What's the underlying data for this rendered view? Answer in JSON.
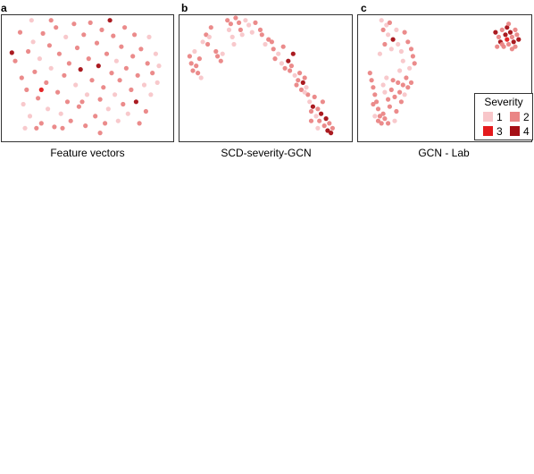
{
  "colors": {
    "1": "#f8c6c9",
    "2": "#ea8585",
    "3": "#e41a1c",
    "4": "#a50f15"
  },
  "legend": {
    "title": "Severity",
    "items": [
      {
        "label": "1",
        "level": 1
      },
      {
        "label": "2",
        "level": 2
      },
      {
        "label": "3",
        "level": 3
      },
      {
        "label": "4",
        "level": 4
      }
    ]
  },
  "chart_data": [
    {
      "type": "scatter",
      "letter": "a",
      "xlabel": "Feature vectors",
      "xlim": [
        0,
        100
      ],
      "ylim": [
        0,
        100
      ],
      "points": [
        {
          "x": 4,
          "y": 71,
          "s": 4
        },
        {
          "x": 6,
          "y": 64,
          "s": 2
        },
        {
          "x": 9,
          "y": 88,
          "s": 2
        },
        {
          "x": 10,
          "y": 50,
          "s": 2
        },
        {
          "x": 11,
          "y": 28,
          "s": 1
        },
        {
          "x": 12,
          "y": 8,
          "s": 1
        },
        {
          "x": 13,
          "y": 40,
          "s": 2
        },
        {
          "x": 14,
          "y": 72,
          "s": 2
        },
        {
          "x": 15,
          "y": 18,
          "s": 1
        },
        {
          "x": 16,
          "y": 98,
          "s": 1
        },
        {
          "x": 17,
          "y": 80,
          "s": 1
        },
        {
          "x": 18,
          "y": 55,
          "s": 2
        },
        {
          "x": 20,
          "y": 33,
          "s": 2
        },
        {
          "x": 21,
          "y": 66,
          "s": 1
        },
        {
          "x": 22,
          "y": 12,
          "s": 2
        },
        {
          "x": 23,
          "y": 87,
          "s": 2
        },
        {
          "x": 25,
          "y": 46,
          "s": 2
        },
        {
          "x": 26,
          "y": 24,
          "s": 1
        },
        {
          "x": 27,
          "y": 77,
          "s": 2
        },
        {
          "x": 28,
          "y": 58,
          "s": 1
        },
        {
          "x": 30,
          "y": 9,
          "s": 2
        },
        {
          "x": 31,
          "y": 92,
          "s": 2
        },
        {
          "x": 32,
          "y": 38,
          "s": 2
        },
        {
          "x": 33,
          "y": 70,
          "s": 2
        },
        {
          "x": 34,
          "y": 20,
          "s": 1
        },
        {
          "x": 36,
          "y": 52,
          "s": 2
        },
        {
          "x": 37,
          "y": 84,
          "s": 1
        },
        {
          "x": 38,
          "y": 30,
          "s": 2
        },
        {
          "x": 39,
          "y": 62,
          "s": 2
        },
        {
          "x": 40,
          "y": 14,
          "s": 2
        },
        {
          "x": 42,
          "y": 95,
          "s": 2
        },
        {
          "x": 43,
          "y": 44,
          "s": 1
        },
        {
          "x": 44,
          "y": 75,
          "s": 2
        },
        {
          "x": 45,
          "y": 26,
          "s": 2
        },
        {
          "x": 46,
          "y": 57,
          "s": 4
        },
        {
          "x": 48,
          "y": 86,
          "s": 2
        },
        {
          "x": 49,
          "y": 10,
          "s": 2
        },
        {
          "x": 50,
          "y": 36,
          "s": 1
        },
        {
          "x": 51,
          "y": 66,
          "s": 2
        },
        {
          "x": 52,
          "y": 96,
          "s": 2
        },
        {
          "x": 53,
          "y": 48,
          "s": 2
        },
        {
          "x": 55,
          "y": 18,
          "s": 2
        },
        {
          "x": 56,
          "y": 79,
          "s": 2
        },
        {
          "x": 57,
          "y": 60,
          "s": 4
        },
        {
          "x": 58,
          "y": 32,
          "s": 2
        },
        {
          "x": 59,
          "y": 90,
          "s": 2
        },
        {
          "x": 60,
          "y": 42,
          "s": 2
        },
        {
          "x": 61,
          "y": 12,
          "s": 2
        },
        {
          "x": 62,
          "y": 70,
          "s": 2
        },
        {
          "x": 63,
          "y": 24,
          "s": 1
        },
        {
          "x": 64,
          "y": 98,
          "s": 4
        },
        {
          "x": 65,
          "y": 54,
          "s": 2
        },
        {
          "x": 66,
          "y": 85,
          "s": 2
        },
        {
          "x": 67,
          "y": 36,
          "s": 1
        },
        {
          "x": 68,
          "y": 64,
          "s": 1
        },
        {
          "x": 69,
          "y": 14,
          "s": 1
        },
        {
          "x": 70,
          "y": 48,
          "s": 2
        },
        {
          "x": 71,
          "y": 76,
          "s": 2
        },
        {
          "x": 72,
          "y": 28,
          "s": 2
        },
        {
          "x": 73,
          "y": 92,
          "s": 2
        },
        {
          "x": 74,
          "y": 58,
          "s": 2
        },
        {
          "x": 75,
          "y": 20,
          "s": 1
        },
        {
          "x": 77,
          "y": 40,
          "s": 2
        },
        {
          "x": 78,
          "y": 68,
          "s": 2
        },
        {
          "x": 79,
          "y": 86,
          "s": 2
        },
        {
          "x": 80,
          "y": 30,
          "s": 4
        },
        {
          "x": 81,
          "y": 52,
          "s": 2
        },
        {
          "x": 82,
          "y": 12,
          "s": 2
        },
        {
          "x": 83,
          "y": 74,
          "s": 2
        },
        {
          "x": 85,
          "y": 44,
          "s": 1
        },
        {
          "x": 86,
          "y": 22,
          "s": 2
        },
        {
          "x": 87,
          "y": 62,
          "s": 2
        },
        {
          "x": 88,
          "y": 84,
          "s": 1
        },
        {
          "x": 89,
          "y": 36,
          "s": 1
        },
        {
          "x": 90,
          "y": 54,
          "s": 2
        },
        {
          "x": 92,
          "y": 70,
          "s": 1
        },
        {
          "x": 93,
          "y": 46,
          "s": 1
        },
        {
          "x": 94,
          "y": 60,
          "s": 1
        },
        {
          "x": 22,
          "y": 40,
          "s": 3
        },
        {
          "x": 47,
          "y": 30,
          "s": 2
        },
        {
          "x": 35,
          "y": 8,
          "s": 2
        },
        {
          "x": 58,
          "y": 4,
          "s": 2
        },
        {
          "x": 19,
          "y": 8,
          "s": 2
        },
        {
          "x": 28,
          "y": 98,
          "s": 2
        }
      ]
    },
    {
      "type": "scatter",
      "letter": "b",
      "xlabel": "SCD-severity-GCN",
      "xlim": [
        0,
        100
      ],
      "ylim": [
        0,
        100
      ],
      "points": [
        {
          "x": 4,
          "y": 68,
          "s": 2
        },
        {
          "x": 5,
          "y": 62,
          "s": 2
        },
        {
          "x": 6,
          "y": 56,
          "s": 2
        },
        {
          "x": 7,
          "y": 72,
          "s": 1
        },
        {
          "x": 8,
          "y": 60,
          "s": 2
        },
        {
          "x": 9,
          "y": 54,
          "s": 2
        },
        {
          "x": 10,
          "y": 66,
          "s": 2
        },
        {
          "x": 11,
          "y": 50,
          "s": 1
        },
        {
          "x": 12,
          "y": 80,
          "s": 1
        },
        {
          "x": 14,
          "y": 86,
          "s": 2
        },
        {
          "x": 15,
          "y": 78,
          "s": 2
        },
        {
          "x": 16,
          "y": 84,
          "s": 1
        },
        {
          "x": 17,
          "y": 92,
          "s": 2
        },
        {
          "x": 20,
          "y": 72,
          "s": 2
        },
        {
          "x": 21,
          "y": 68,
          "s": 2
        },
        {
          "x": 24,
          "y": 70,
          "s": 1
        },
        {
          "x": 27,
          "y": 98,
          "s": 2
        },
        {
          "x": 28,
          "y": 90,
          "s": 1
        },
        {
          "x": 29,
          "y": 95,
          "s": 2
        },
        {
          "x": 30,
          "y": 84,
          "s": 1
        },
        {
          "x": 31,
          "y": 78,
          "s": 1
        },
        {
          "x": 32,
          "y": 100,
          "s": 2
        },
        {
          "x": 34,
          "y": 96,
          "s": 2
        },
        {
          "x": 35,
          "y": 90,
          "s": 2
        },
        {
          "x": 38,
          "y": 98,
          "s": 1
        },
        {
          "x": 40,
          "y": 94,
          "s": 1
        },
        {
          "x": 44,
          "y": 96,
          "s": 2
        },
        {
          "x": 47,
          "y": 90,
          "s": 2
        },
        {
          "x": 48,
          "y": 86,
          "s": 2
        },
        {
          "x": 50,
          "y": 78,
          "s": 1
        },
        {
          "x": 52,
          "y": 82,
          "s": 2
        },
        {
          "x": 55,
          "y": 74,
          "s": 2
        },
        {
          "x": 56,
          "y": 66,
          "s": 2
        },
        {
          "x": 58,
          "y": 70,
          "s": 1
        },
        {
          "x": 60,
          "y": 62,
          "s": 1
        },
        {
          "x": 62,
          "y": 58,
          "s": 2
        },
        {
          "x": 64,
          "y": 64,
          "s": 4
        },
        {
          "x": 65,
          "y": 56,
          "s": 2
        },
        {
          "x": 66,
          "y": 60,
          "s": 2
        },
        {
          "x": 68,
          "y": 52,
          "s": 1
        },
        {
          "x": 69,
          "y": 44,
          "s": 2
        },
        {
          "x": 70,
          "y": 48,
          "s": 2
        },
        {
          "x": 71,
          "y": 54,
          "s": 2
        },
        {
          "x": 72,
          "y": 40,
          "s": 2
        },
        {
          "x": 73,
          "y": 46,
          "s": 4
        },
        {
          "x": 74,
          "y": 50,
          "s": 2
        },
        {
          "x": 75,
          "y": 42,
          "s": 1
        },
        {
          "x": 76,
          "y": 36,
          "s": 2
        },
        {
          "x": 77,
          "y": 30,
          "s": 1
        },
        {
          "x": 78,
          "y": 22,
          "s": 2
        },
        {
          "x": 79,
          "y": 26,
          "s": 4
        },
        {
          "x": 80,
          "y": 34,
          "s": 2
        },
        {
          "x": 81,
          "y": 18,
          "s": 1
        },
        {
          "x": 82,
          "y": 24,
          "s": 2
        },
        {
          "x": 83,
          "y": 14,
          "s": 2
        },
        {
          "x": 84,
          "y": 20,
          "s": 4
        },
        {
          "x": 85,
          "y": 30,
          "s": 2
        },
        {
          "x": 86,
          "y": 10,
          "s": 2
        },
        {
          "x": 87,
          "y": 16,
          "s": 4
        },
        {
          "x": 88,
          "y": 6,
          "s": 4
        },
        {
          "x": 89,
          "y": 12,
          "s": 2
        },
        {
          "x": 90,
          "y": 4,
          "s": 4
        },
        {
          "x": 91,
          "y": 8,
          "s": 2
        },
        {
          "x": 67,
          "y": 70,
          "s": 4
        },
        {
          "x": 61,
          "y": 76,
          "s": 2
        },
        {
          "x": 74,
          "y": 38,
          "s": 1
        },
        {
          "x": 82,
          "y": 8,
          "s": 1
        },
        {
          "x": 78,
          "y": 14,
          "s": 2
        },
        {
          "x": 42,
          "y": 88,
          "s": 1
        },
        {
          "x": 54,
          "y": 80,
          "s": 2
        },
        {
          "x": 36,
          "y": 86,
          "s": 1
        },
        {
          "x": 23,
          "y": 64,
          "s": 2
        }
      ]
    },
    {
      "type": "scatter",
      "letter": "c",
      "xlabel": "GCN - Lab",
      "xlim": [
        0,
        100
      ],
      "ylim": [
        0,
        100
      ],
      "points": [
        {
          "x": 12,
          "y": 98,
          "s": 1
        },
        {
          "x": 15,
          "y": 94,
          "s": 1
        },
        {
          "x": 13,
          "y": 90,
          "s": 2
        },
        {
          "x": 17,
          "y": 96,
          "s": 2
        },
        {
          "x": 16,
          "y": 86,
          "s": 1
        },
        {
          "x": 19,
          "y": 82,
          "s": 4
        },
        {
          "x": 14,
          "y": 78,
          "s": 2
        },
        {
          "x": 18,
          "y": 74,
          "s": 1
        },
        {
          "x": 11,
          "y": 70,
          "s": 1
        },
        {
          "x": 21,
          "y": 90,
          "s": 1
        },
        {
          "x": 22,
          "y": 78,
          "s": 1
        },
        {
          "x": 24,
          "y": 72,
          "s": 1
        },
        {
          "x": 26,
          "y": 88,
          "s": 2
        },
        {
          "x": 28,
          "y": 80,
          "s": 2
        },
        {
          "x": 30,
          "y": 74,
          "s": 2
        },
        {
          "x": 31,
          "y": 68,
          "s": 2
        },
        {
          "x": 32,
          "y": 62,
          "s": 2
        },
        {
          "x": 29,
          "y": 58,
          "s": 1
        },
        {
          "x": 25,
          "y": 64,
          "s": 1
        },
        {
          "x": 23,
          "y": 56,
          "s": 1
        },
        {
          "x": 5,
          "y": 54,
          "s": 2
        },
        {
          "x": 6,
          "y": 48,
          "s": 2
        },
        {
          "x": 7,
          "y": 42,
          "s": 2
        },
        {
          "x": 8,
          "y": 36,
          "s": 2
        },
        {
          "x": 9,
          "y": 30,
          "s": 2
        },
        {
          "x": 10,
          "y": 24,
          "s": 2
        },
        {
          "x": 11,
          "y": 18,
          "s": 2
        },
        {
          "x": 12,
          "y": 12,
          "s": 2
        },
        {
          "x": 13,
          "y": 44,
          "s": 1
        },
        {
          "x": 14,
          "y": 38,
          "s": 1
        },
        {
          "x": 15,
          "y": 50,
          "s": 1
        },
        {
          "x": 16,
          "y": 32,
          "s": 2
        },
        {
          "x": 17,
          "y": 26,
          "s": 2
        },
        {
          "x": 18,
          "y": 40,
          "s": 2
        },
        {
          "x": 19,
          "y": 48,
          "s": 2
        },
        {
          "x": 20,
          "y": 34,
          "s": 2
        },
        {
          "x": 21,
          "y": 22,
          "s": 2
        },
        {
          "x": 22,
          "y": 46,
          "s": 2
        },
        {
          "x": 23,
          "y": 38,
          "s": 2
        },
        {
          "x": 24,
          "y": 30,
          "s": 2
        },
        {
          "x": 25,
          "y": 44,
          "s": 2
        },
        {
          "x": 26,
          "y": 36,
          "s": 1
        },
        {
          "x": 27,
          "y": 50,
          "s": 2
        },
        {
          "x": 28,
          "y": 42,
          "s": 2
        },
        {
          "x": 30,
          "y": 46,
          "s": 2
        },
        {
          "x": 10,
          "y": 14,
          "s": 2
        },
        {
          "x": 8,
          "y": 18,
          "s": 1
        },
        {
          "x": 14,
          "y": 16,
          "s": 2
        },
        {
          "x": 16,
          "y": 12,
          "s": 2
        },
        {
          "x": 20,
          "y": 14,
          "s": 1
        },
        {
          "x": 13,
          "y": 20,
          "s": 2
        },
        {
          "x": 7,
          "y": 28,
          "s": 2
        },
        {
          "x": 81,
          "y": 88,
          "s": 4
        },
        {
          "x": 83,
          "y": 84,
          "s": 2
        },
        {
          "x": 84,
          "y": 80,
          "s": 4
        },
        {
          "x": 85,
          "y": 90,
          "s": 2
        },
        {
          "x": 86,
          "y": 76,
          "s": 2
        },
        {
          "x": 87,
          "y": 86,
          "s": 4
        },
        {
          "x": 88,
          "y": 82,
          "s": 3
        },
        {
          "x": 89,
          "y": 78,
          "s": 2
        },
        {
          "x": 90,
          "y": 88,
          "s": 4
        },
        {
          "x": 91,
          "y": 84,
          "s": 2
        },
        {
          "x": 92,
          "y": 80,
          "s": 4
        },
        {
          "x": 93,
          "y": 76,
          "s": 2
        },
        {
          "x": 94,
          "y": 86,
          "s": 2
        },
        {
          "x": 95,
          "y": 82,
          "s": 4
        },
        {
          "x": 88,
          "y": 92,
          "s": 4
        },
        {
          "x": 91,
          "y": 74,
          "s": 2
        },
        {
          "x": 85,
          "y": 78,
          "s": 2
        },
        {
          "x": 82,
          "y": 76,
          "s": 2
        },
        {
          "x": 93,
          "y": 90,
          "s": 2
        },
        {
          "x": 89,
          "y": 95,
          "s": 2
        }
      ]
    }
  ]
}
